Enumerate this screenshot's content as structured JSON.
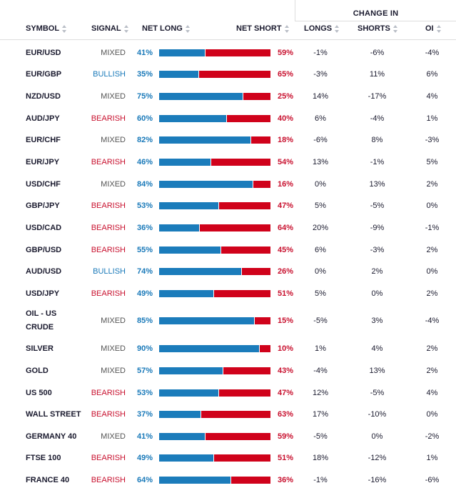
{
  "header": {
    "change_in": "CHANGE IN",
    "symbol": "SYMBOL",
    "signal": "SIGNAL",
    "net_long": "NET LONG",
    "net_short": "NET SHORT",
    "longs": "LONGS",
    "shorts": "SHORTS",
    "oi": "OI"
  },
  "rows": [
    {
      "symbol": "EUR/USD",
      "signal": "MIXED",
      "net_long": 41,
      "net_long_label": "41%",
      "net_short_label": "59%",
      "longs": "-1%",
      "shorts": "-6%",
      "oi": "-4%"
    },
    {
      "symbol": "EUR/GBP",
      "signal": "BULLISH",
      "net_long": 35,
      "net_long_label": "35%",
      "net_short_label": "65%",
      "longs": "-3%",
      "shorts": "11%",
      "oi": "6%"
    },
    {
      "symbol": "NZD/USD",
      "signal": "MIXED",
      "net_long": 75,
      "net_long_label": "75%",
      "net_short_label": "25%",
      "longs": "14%",
      "shorts": "-17%",
      "oi": "4%"
    },
    {
      "symbol": "AUD/JPY",
      "signal": "BEARISH",
      "net_long": 60,
      "net_long_label": "60%",
      "net_short_label": "40%",
      "longs": "6%",
      "shorts": "-4%",
      "oi": "1%"
    },
    {
      "symbol": "EUR/CHF",
      "signal": "MIXED",
      "net_long": 82,
      "net_long_label": "82%",
      "net_short_label": "18%",
      "longs": "-6%",
      "shorts": "8%",
      "oi": "-3%"
    },
    {
      "symbol": "EUR/JPY",
      "signal": "BEARISH",
      "net_long": 46,
      "net_long_label": "46%",
      "net_short_label": "54%",
      "longs": "13%",
      "shorts": "-1%",
      "oi": "5%"
    },
    {
      "symbol": "USD/CHF",
      "signal": "MIXED",
      "net_long": 84,
      "net_long_label": "84%",
      "net_short_label": "16%",
      "longs": "0%",
      "shorts": "13%",
      "oi": "2%"
    },
    {
      "symbol": "GBP/JPY",
      "signal": "BEARISH",
      "net_long": 53,
      "net_long_label": "53%",
      "net_short_label": "47%",
      "longs": "5%",
      "shorts": "-5%",
      "oi": "0%"
    },
    {
      "symbol": "USD/CAD",
      "signal": "BEARISH",
      "net_long": 36,
      "net_long_label": "36%",
      "net_short_label": "64%",
      "longs": "20%",
      "shorts": "-9%",
      "oi": "-1%"
    },
    {
      "symbol": "GBP/USD",
      "signal": "BEARISH",
      "net_long": 55,
      "net_long_label": "55%",
      "net_short_label": "45%",
      "longs": "6%",
      "shorts": "-3%",
      "oi": "2%"
    },
    {
      "symbol": "AUD/USD",
      "signal": "BULLISH",
      "net_long": 74,
      "net_long_label": "74%",
      "net_short_label": "26%",
      "longs": "0%",
      "shorts": "2%",
      "oi": "0%"
    },
    {
      "symbol": "USD/JPY",
      "signal": "BEARISH",
      "net_long": 49,
      "net_long_label": "49%",
      "net_short_label": "51%",
      "longs": "5%",
      "shorts": "0%",
      "oi": "2%"
    },
    {
      "symbol": "OIL - US CRUDE",
      "signal": "MIXED",
      "net_long": 85,
      "net_long_label": "85%",
      "net_short_label": "15%",
      "longs": "-5%",
      "shorts": "3%",
      "oi": "-4%"
    },
    {
      "symbol": "SILVER",
      "signal": "MIXED",
      "net_long": 90,
      "net_long_label": "90%",
      "net_short_label": "10%",
      "longs": "1%",
      "shorts": "4%",
      "oi": "2%"
    },
    {
      "symbol": "GOLD",
      "signal": "MIXED",
      "net_long": 57,
      "net_long_label": "57%",
      "net_short_label": "43%",
      "longs": "-4%",
      "shorts": "13%",
      "oi": "2%"
    },
    {
      "symbol": "US 500",
      "signal": "BEARISH",
      "net_long": 53,
      "net_long_label": "53%",
      "net_short_label": "47%",
      "longs": "12%",
      "shorts": "-5%",
      "oi": "4%"
    },
    {
      "symbol": "WALL STREET",
      "signal": "BEARISH",
      "net_long": 37,
      "net_long_label": "37%",
      "net_short_label": "63%",
      "longs": "17%",
      "shorts": "-10%",
      "oi": "0%"
    },
    {
      "symbol": "GERMANY 40",
      "signal": "MIXED",
      "net_long": 41,
      "net_long_label": "41%",
      "net_short_label": "59%",
      "longs": "-5%",
      "shorts": "0%",
      "oi": "-2%"
    },
    {
      "symbol": "FTSE 100",
      "signal": "BEARISH",
      "net_long": 49,
      "net_long_label": "49%",
      "net_short_label": "51%",
      "longs": "18%",
      "shorts": "-12%",
      "oi": "1%"
    },
    {
      "symbol": "FRANCE 40",
      "signal": "BEARISH",
      "net_long": 64,
      "net_long_label": "64%",
      "net_short_label": "36%",
      "longs": "-1%",
      "shorts": "-16%",
      "oi": "-6%"
    }
  ]
}
